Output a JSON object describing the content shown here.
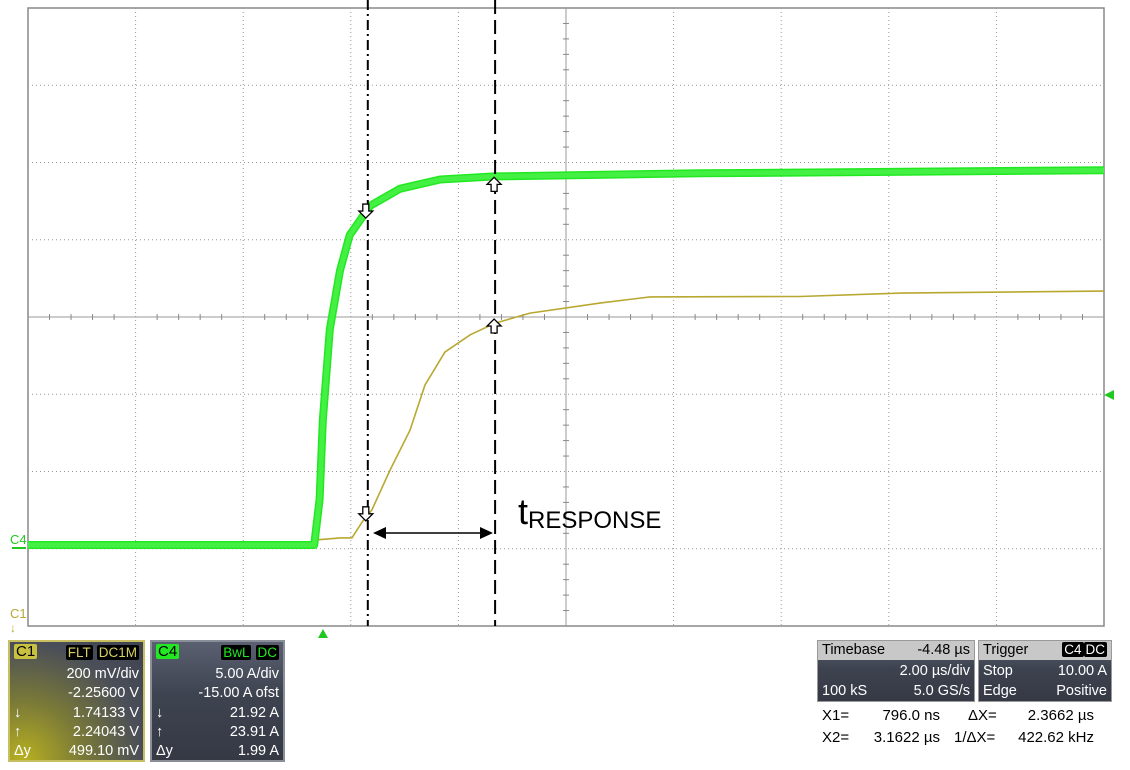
{
  "colors": {
    "c1": "#b8a830",
    "c4": "#22e822",
    "grid": "#999999",
    "panel": "#3e4350"
  },
  "markers": {
    "c4": "C4",
    "c1": "C1"
  },
  "annotation": {
    "t": "t",
    "sub": "RESPONSE"
  },
  "c1_panel": {
    "name": "C1",
    "tags": [
      "FLT",
      "DC1M"
    ],
    "scale": "200 mV/div",
    "offset": "-2.25600 V",
    "down_label": "↓",
    "down": "1.74133 V",
    "up_label": "↑",
    "up": "2.24043 V",
    "dy_label": "Δy",
    "dy": "499.10 mV"
  },
  "c4_panel": {
    "name": "C4",
    "tags": [
      "BwL",
      "DC"
    ],
    "scale": "5.00 A/div",
    "offset": "-15.00 A ofst",
    "down_label": "↓",
    "down": "21.92 A",
    "up_label": "↑",
    "up": "23.91 A",
    "dy_label": "Δy",
    "dy": "1.99 A"
  },
  "timebase": {
    "label": "Timebase",
    "value": "-4.48 µs",
    "scale": "2.00 µs/div",
    "samples": "100 kS",
    "rate": "5.0 GS/s"
  },
  "trigger": {
    "label": "Trigger",
    "tags": [
      "C4",
      "DC"
    ],
    "mode": "Stop",
    "level": "10.00 A",
    "type": "Edge",
    "slope": "Positive"
  },
  "cursors": {
    "x1_label": "X1=",
    "x1": "796.0 ns",
    "x2_label": "X2=",
    "x2": "3.1622 µs",
    "dx_label": "ΔX=",
    "dx": "2.3662 µs",
    "inv_label": "1/ΔX=",
    "inv": "422.62 kHz"
  },
  "chart_data": {
    "type": "line",
    "grid": true,
    "divisions": {
      "x": 10,
      "y": 8
    },
    "xlim_us": [
      -5.52,
      14.48
    ],
    "cursor_x_us": [
      0.796,
      3.1622
    ],
    "series": [
      {
        "name": "C4",
        "unit": "A",
        "per_div": 5,
        "center": 15,
        "color": "#22e822",
        "points": [
          [
            -5.52,
            0.24
          ],
          [
            -0.2,
            0.24
          ],
          [
            -0.1,
            3.2
          ],
          [
            -0.04,
            8.3
          ],
          [
            0.09,
            14.2
          ],
          [
            0.28,
            18
          ],
          [
            0.46,
            20.3
          ],
          [
            0.84,
            22.2
          ],
          [
            1.39,
            23.3
          ],
          [
            2.14,
            23.9
          ],
          [
            3.16,
            24.1
          ],
          [
            6.97,
            24.3
          ],
          [
            14.48,
            24.5
          ]
        ]
      },
      {
        "name": "C1",
        "unit": "V",
        "per_div": 0.2,
        "center": 2.256,
        "color": "#b8a830",
        "points": [
          [
            -0.17,
            1.679
          ],
          [
            0.28,
            1.684
          ],
          [
            0.5,
            1.684
          ],
          [
            0.69,
            1.725
          ],
          [
            0.87,
            1.756
          ],
          [
            1.21,
            1.86
          ],
          [
            1.58,
            1.963
          ],
          [
            1.86,
            2.08
          ],
          [
            2.23,
            2.165
          ],
          [
            2.7,
            2.21
          ],
          [
            3.16,
            2.24
          ],
          [
            3.81,
            2.266
          ],
          [
            5.11,
            2.292
          ],
          [
            6.04,
            2.308
          ],
          [
            8.83,
            2.309
          ],
          [
            10.7,
            2.318
          ],
          [
            14.48,
            2.323
          ]
        ]
      }
    ],
    "trigger_level_A": 10,
    "cursor_levels": {
      "C4": [
        21.92,
        23.91
      ],
      "C1": [
        1.74133,
        2.24043
      ]
    }
  }
}
